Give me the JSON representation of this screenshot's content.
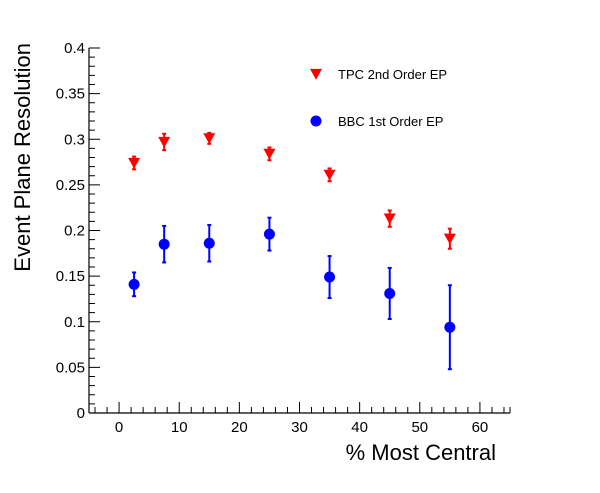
{
  "chart_data": {
    "type": "scatter",
    "xlabel": "% Most Central",
    "ylabel": "Event Plane Resolution",
    "xlim": [
      -5,
      65
    ],
    "ylim": [
      0,
      0.4
    ],
    "x_ticks": [
      "0",
      "10",
      "20",
      "30",
      "40",
      "50",
      "60"
    ],
    "y_ticks": [
      "0",
      "0.05",
      "0.1",
      "0.15",
      "0.2",
      "0.25",
      "0.3",
      "0.35",
      "0.4"
    ],
    "grid": false,
    "legend_position": "top-right",
    "series": [
      {
        "name": "TPC 2nd Order EP",
        "marker": "triangle-down",
        "color": "#ff0000",
        "points": [
          {
            "x": 2.5,
            "y": 0.274,
            "err": 0.007
          },
          {
            "x": 7.5,
            "y": 0.297,
            "err": 0.009
          },
          {
            "x": 15,
            "y": 0.301,
            "err": 0.006
          },
          {
            "x": 25,
            "y": 0.284,
            "err": 0.007
          },
          {
            "x": 35,
            "y": 0.261,
            "err": 0.007
          },
          {
            "x": 45,
            "y": 0.213,
            "err": 0.009
          },
          {
            "x": 55,
            "y": 0.191,
            "err": 0.011
          }
        ]
      },
      {
        "name": "BBC 1st Order EP",
        "marker": "circle",
        "color": "#0000ff",
        "points": [
          {
            "x": 2.5,
            "y": 0.141,
            "err": 0.013
          },
          {
            "x": 7.5,
            "y": 0.185,
            "err": 0.02
          },
          {
            "x": 15,
            "y": 0.186,
            "err": 0.02
          },
          {
            "x": 25,
            "y": 0.196,
            "err": 0.018
          },
          {
            "x": 35,
            "y": 0.149,
            "err": 0.023
          },
          {
            "x": 45,
            "y": 0.131,
            "err": 0.028
          },
          {
            "x": 55,
            "y": 0.094,
            "err": 0.046
          }
        ]
      }
    ]
  }
}
